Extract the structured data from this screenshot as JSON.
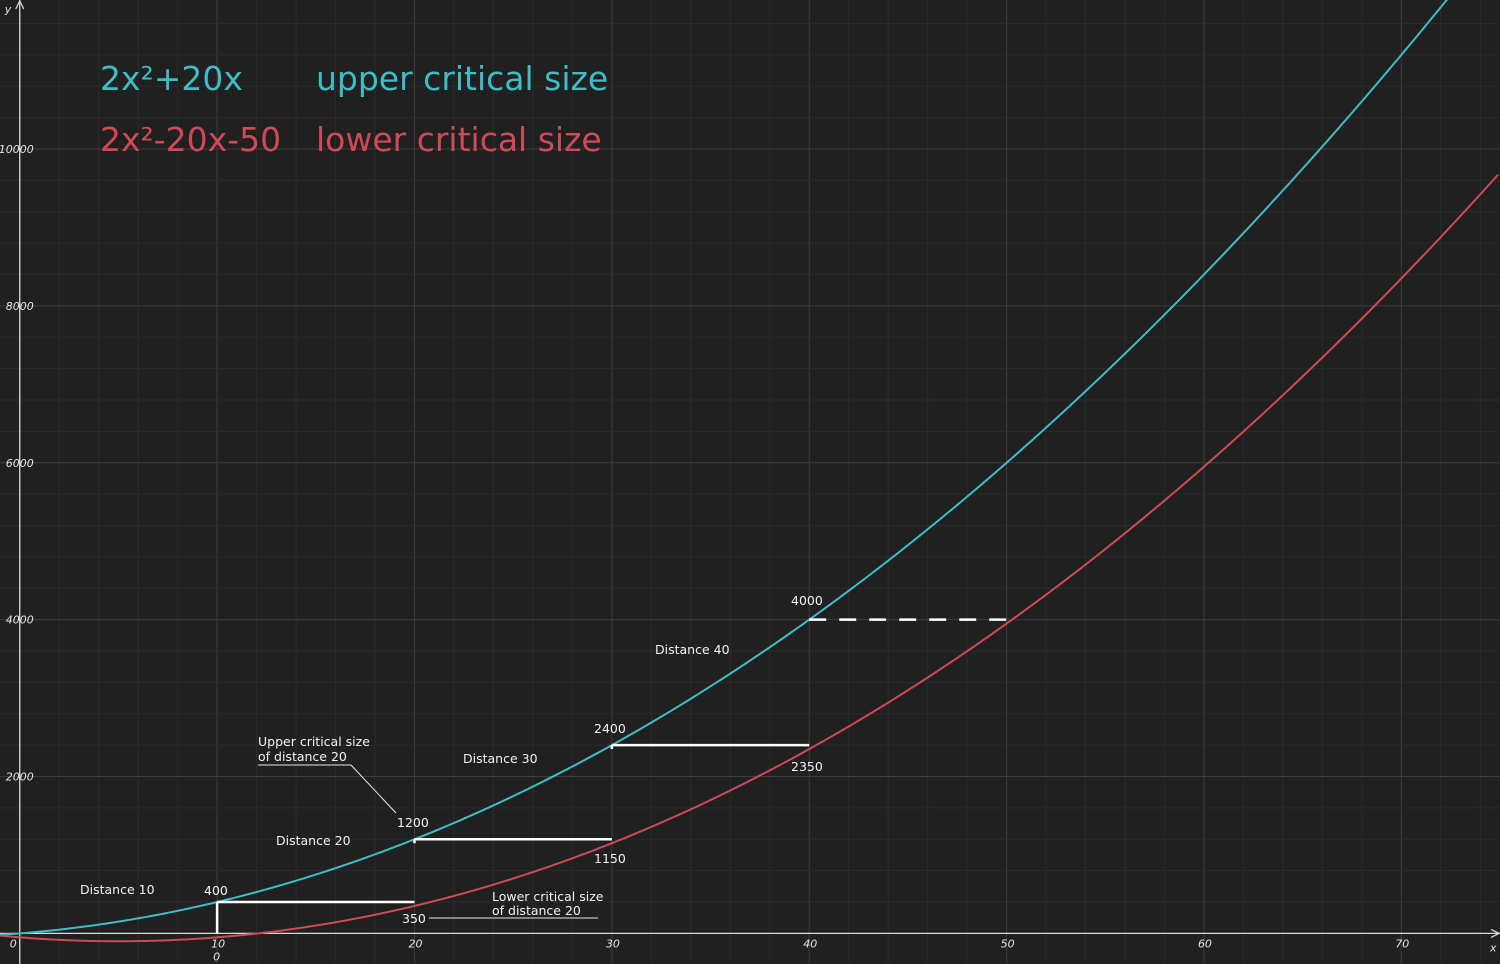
{
  "chart_data": {
    "type": "line",
    "xlabel": "x",
    "ylabel": "y",
    "xlim": [
      -1,
      75
    ],
    "ylim": [
      -390,
      11900
    ],
    "x_ticks": [
      0,
      10,
      20,
      30,
      40,
      50,
      60,
      70
    ],
    "y_ticks": [
      2000,
      4000,
      6000,
      8000,
      10000
    ],
    "x_tick_labels": [
      "0",
      "10",
      "20",
      "30",
      "40",
      "50",
      "60",
      "70"
    ],
    "y_tick_labels": [
      "2000",
      "4000",
      "6000",
      "8000",
      "10000"
    ],
    "x_sublabel": "0",
    "grid": true,
    "colors": {
      "upper": "#3fbdc6",
      "lower": "#d04a55",
      "step": "#ffffff",
      "background": "#202020"
    },
    "series": [
      {
        "name": "upper critical size",
        "formula": "2x²+20x",
        "color": "#3fbdc6"
      },
      {
        "name": "lower critical size",
        "formula": "2x²-20x-50",
        "color": "#d04a55"
      }
    ],
    "legend": [
      {
        "formula": "2x²+20x",
        "label": "upper critical size",
        "color": "#3fbdc6"
      },
      {
        "formula": "2x²-20x-50",
        "label": "lower critical size",
        "color": "#d04a55"
      }
    ],
    "legend_position": "top-left",
    "steps": [
      {
        "x": 10,
        "upper": 400,
        "lower": 350
      },
      {
        "x": 20,
        "upper": 1200,
        "lower": 1150
      },
      {
        "x": 30,
        "upper": 2400,
        "lower": 2350
      },
      {
        "x": 40,
        "upper": 4000
      }
    ],
    "dashed_segment": {
      "from_x": 40,
      "to_x": 50,
      "y": 4000
    },
    "value_labels": [
      "400",
      "350",
      "1200",
      "1150",
      "2400",
      "2350",
      "4000"
    ],
    "distance_labels": [
      "Distance 10",
      "Distance 20",
      "Distance 30",
      "Distance 40"
    ],
    "annotations": {
      "upper_line1": "Upper critical size",
      "upper_line2": "of distance 20",
      "lower_line1": "Lower critical size",
      "lower_line2": "of distance 20"
    }
  }
}
